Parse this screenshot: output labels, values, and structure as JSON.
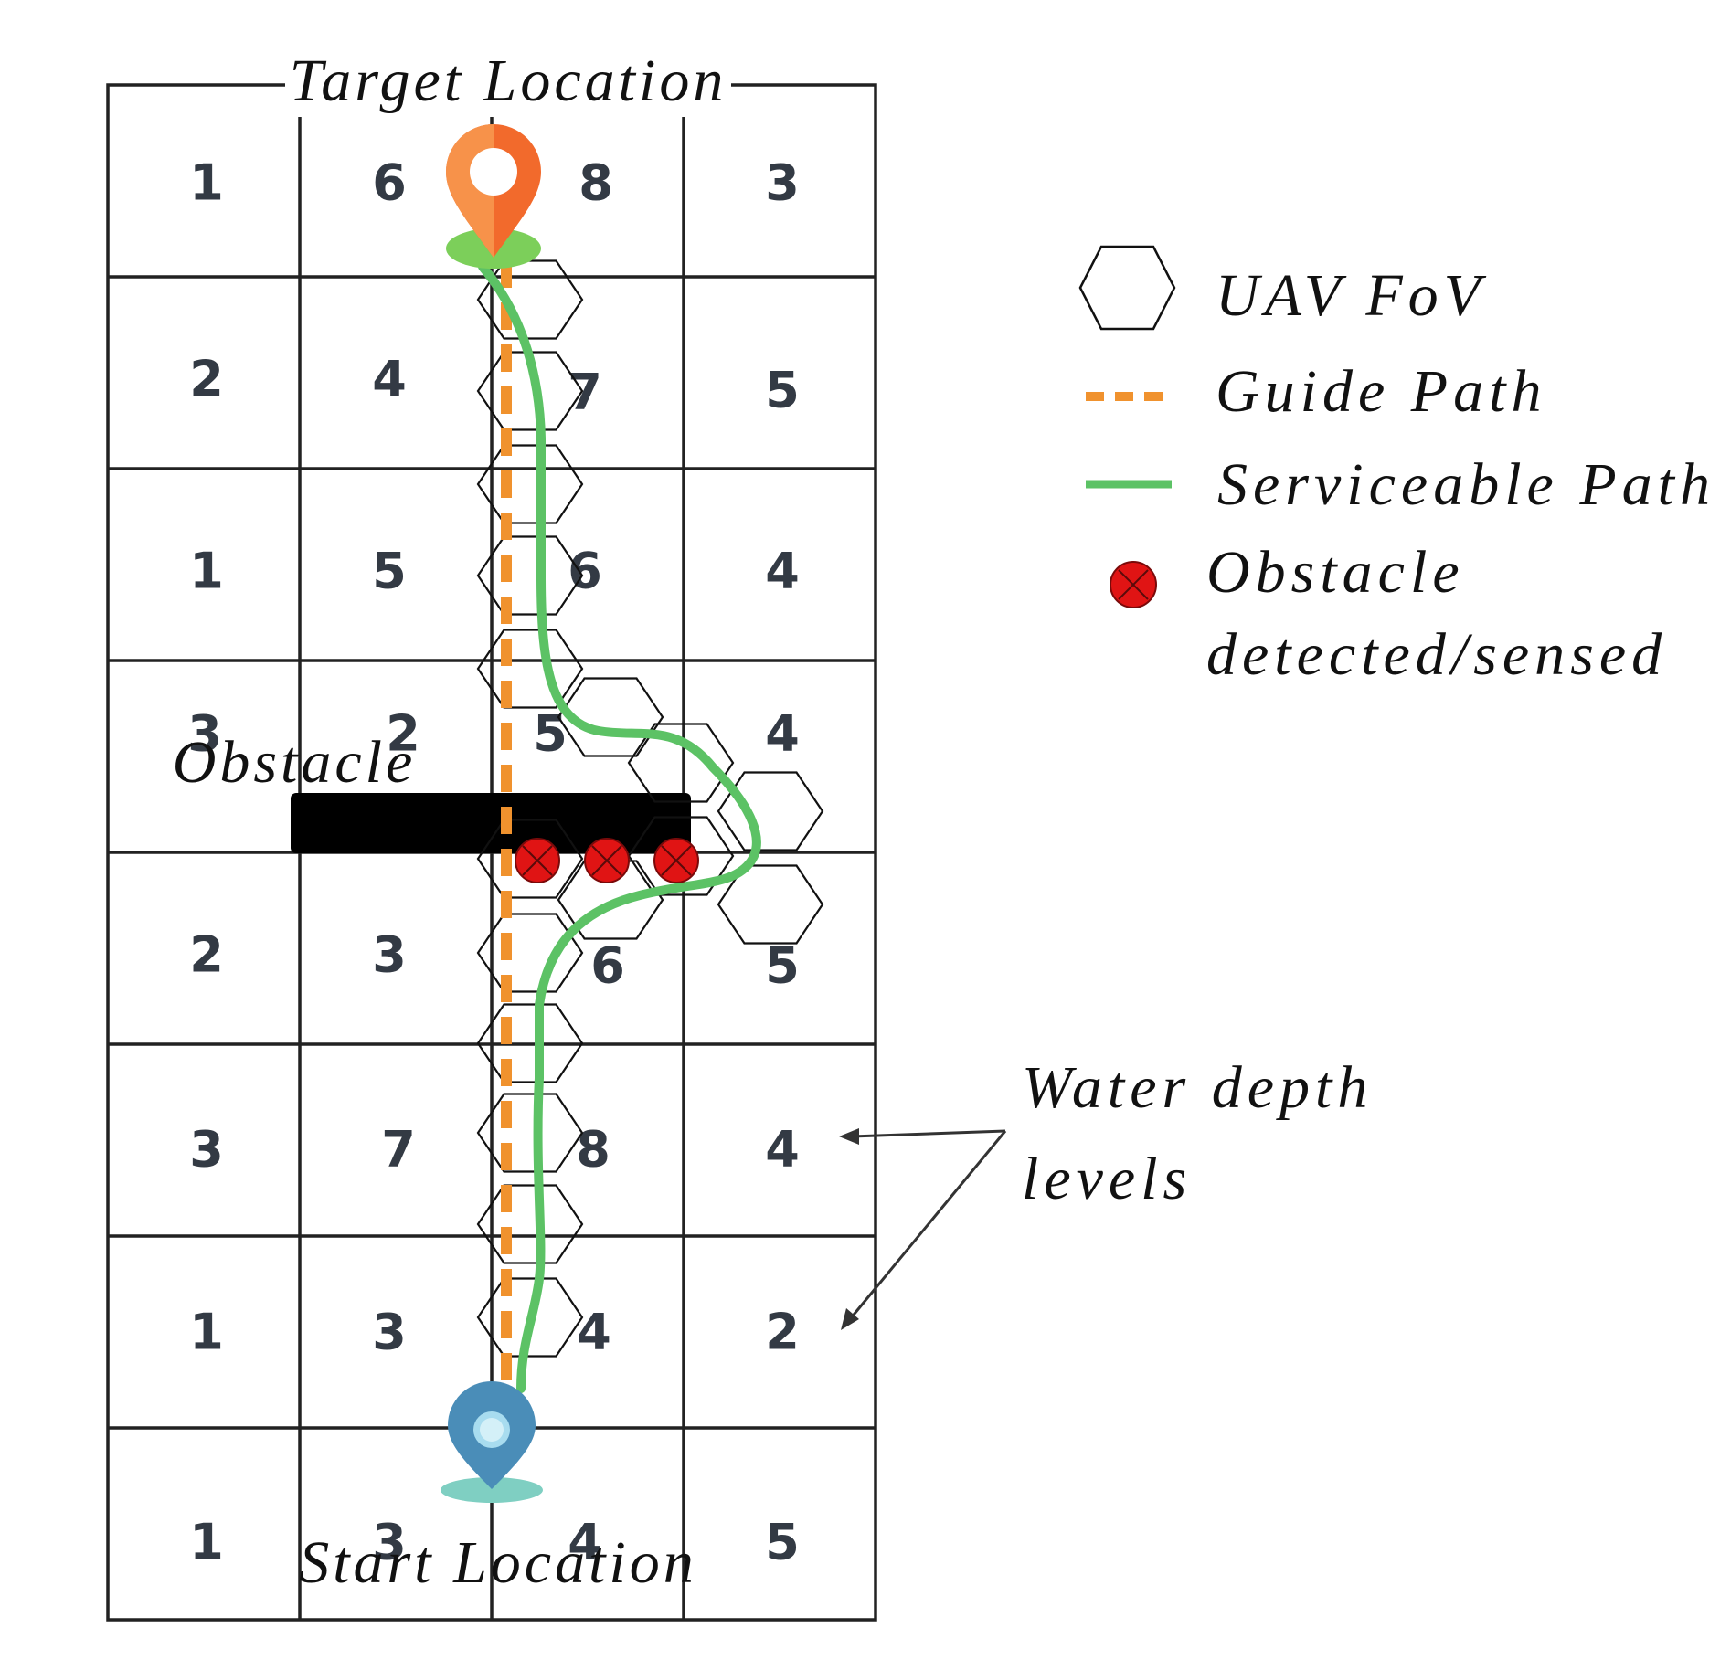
{
  "title_top": "Target Location",
  "title_bottom": "Start Location",
  "obstacle_label": "Obstacle",
  "water_depth_label": {
    "line1": "Water depth",
    "line2": "levels"
  },
  "legend": [
    {
      "key": "uav-fov",
      "label": "UAV FoV",
      "icon": "hexagon-icon"
    },
    {
      "key": "guide-path",
      "label": "Guide Path",
      "icon": "dashed-line-icon",
      "color": "#f0922e"
    },
    {
      "key": "serviceable-path",
      "label": "Serviceable Path",
      "icon": "solid-line-icon",
      "color": "#5cc265"
    },
    {
      "key": "obstacle-detected",
      "label_line1": "Obstacle",
      "label_line2": "detected/sensed",
      "icon": "red-circle-x-icon",
      "color": "#e01414"
    }
  ],
  "grid": {
    "rows": [
      [
        "1",
        "6",
        "8",
        "3"
      ],
      [
        "2",
        "4",
        "7",
        "5"
      ],
      [
        "1",
        "5",
        "6",
        "4"
      ],
      [
        "3",
        "2",
        "5",
        "4"
      ],
      [
        "2",
        "3",
        "6",
        "5"
      ],
      [
        "3",
        "7",
        "8",
        "4"
      ],
      [
        "1",
        "3",
        "4",
        "2"
      ],
      [
        "1",
        "3",
        "4",
        "5"
      ]
    ]
  },
  "colors": {
    "target_pin": "#f26a2c",
    "start_pin": "#4a8db8",
    "obstacle_bar": "#000000",
    "guide_path": "#f0922e",
    "serviceable_path": "#5cc265",
    "sensed_obstacle": "#e01414",
    "cell_text": "#333a44"
  }
}
